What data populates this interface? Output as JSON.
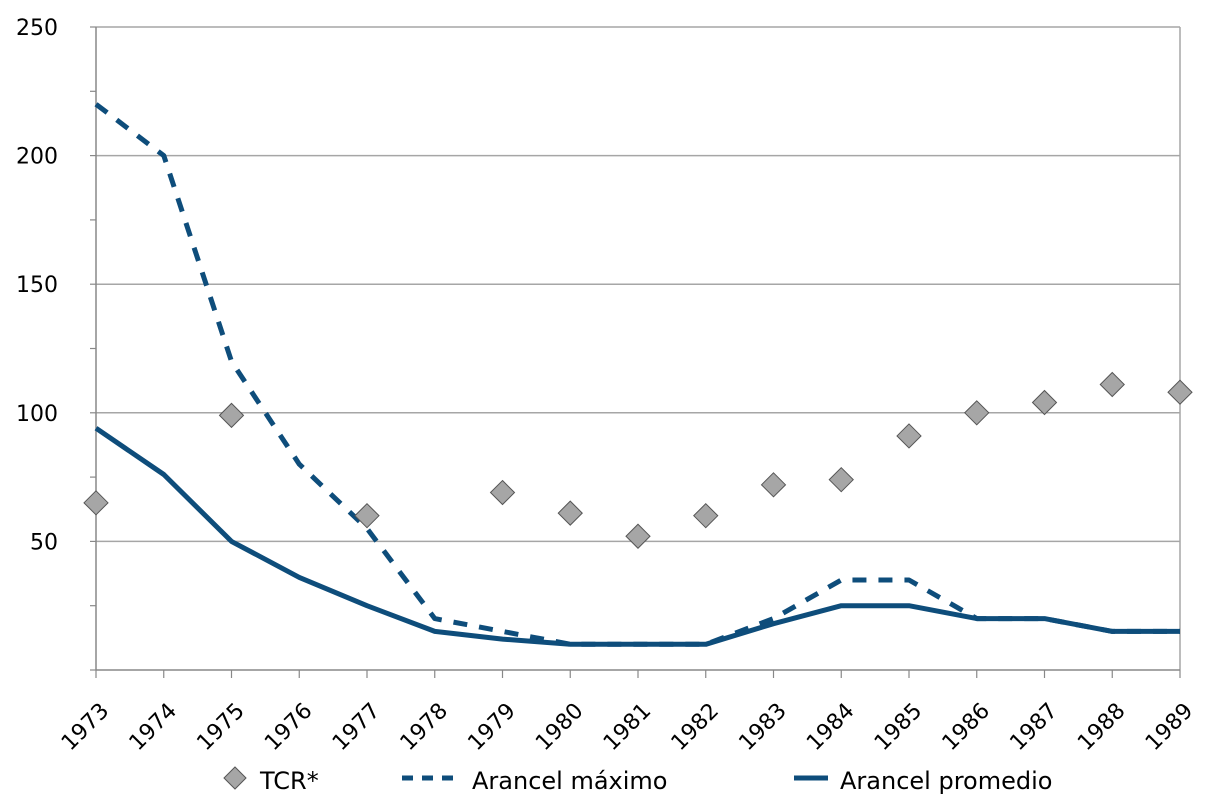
{
  "chart_data": {
    "type": "line",
    "x": [
      "1973",
      "1974",
      "1975",
      "1976",
      "1977",
      "1978",
      "1979",
      "1980",
      "1981",
      "1982",
      "1983",
      "1984",
      "1985",
      "1986",
      "1987",
      "1988",
      "1989"
    ],
    "ylim": [
      0,
      250
    ],
    "yticks": [
      50,
      100,
      150,
      200,
      250
    ],
    "grid": true,
    "legend_position": "bottom",
    "series": [
      {
        "name": "TCR*",
        "style": "marker-diamond",
        "color": "#a6a6a6",
        "values": [
          65,
          null,
          99,
          null,
          60,
          null,
          69,
          61,
          52,
          60,
          72,
          74,
          91,
          100,
          104,
          111,
          108
        ]
      },
      {
        "name": "Arancel máximo",
        "style": "dashed",
        "color": "#0e4d7b",
        "values": [
          220,
          200,
          120,
          80,
          55,
          20,
          15,
          10,
          10,
          10,
          20,
          35,
          35,
          20,
          20,
          15,
          15
        ]
      },
      {
        "name": "Arancel promedio",
        "style": "solid",
        "color": "#0e4d7b",
        "values": [
          94,
          76,
          50,
          36,
          25,
          15,
          12,
          10,
          10,
          10,
          18,
          25,
          25,
          20,
          20,
          15,
          15
        ]
      }
    ]
  }
}
